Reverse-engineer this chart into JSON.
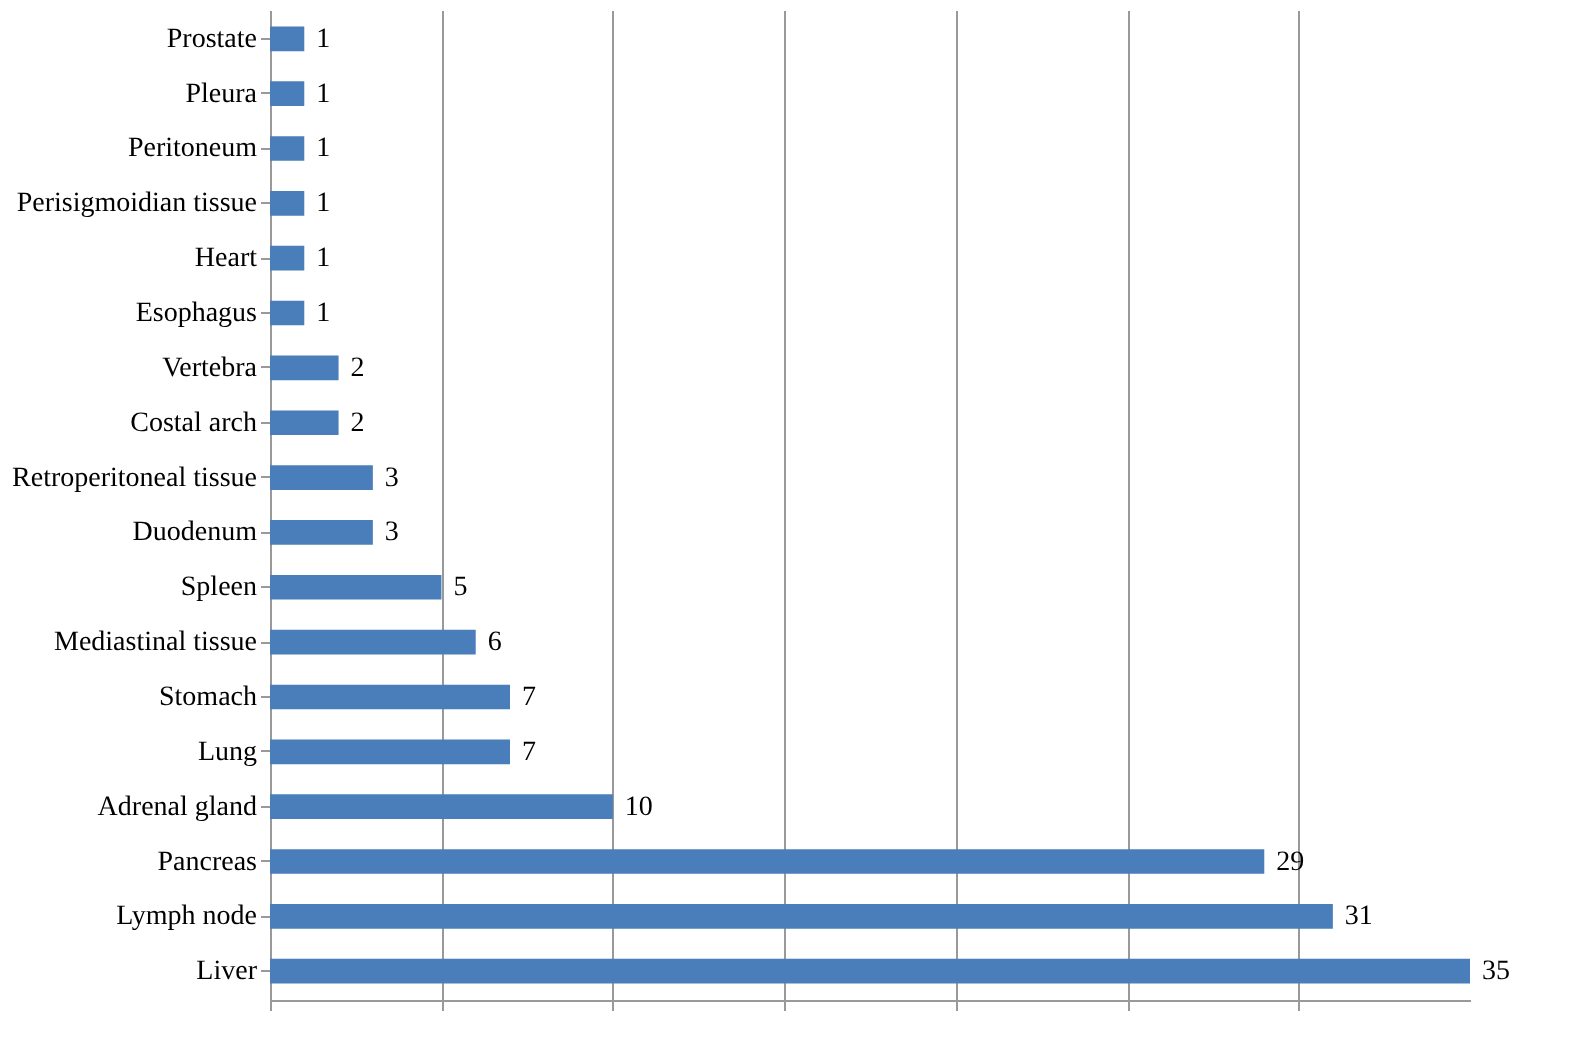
{
  "chart_data": {
    "type": "bar",
    "orientation": "horizontal",
    "categories": [
      "Prostate",
      "Pleura",
      "Peritoneum",
      "Perisigmoidian tissue",
      "Heart",
      "Esophagus",
      "Vertebra",
      "Costal arch",
      "Retroperitoneal tissue",
      "Duodenum",
      "Spleen",
      "Mediastinal tissue",
      "Stomach",
      "Lung",
      "Adrenal gland",
      "Pancreas",
      "Lymph node",
      "Liver"
    ],
    "values": [
      1,
      1,
      1,
      1,
      1,
      1,
      2,
      2,
      3,
      3,
      5,
      6,
      7,
      7,
      10,
      29,
      31,
      35
    ],
    "color": "#4a7ebb",
    "xlim": [
      0,
      35
    ],
    "xticks": [
      {
        "value": 0,
        "label": null
      },
      {
        "value": 5,
        "label": null
      },
      {
        "value": 10,
        "label": null
      },
      {
        "value": 15,
        "label": null
      },
      {
        "value": 20,
        "label": null
      },
      {
        "value": 25,
        "label": null
      },
      {
        "value": 30,
        "label": null
      }
    ],
    "tick_labels": "y",
    "grid": "x",
    "data_labels": true
  }
}
